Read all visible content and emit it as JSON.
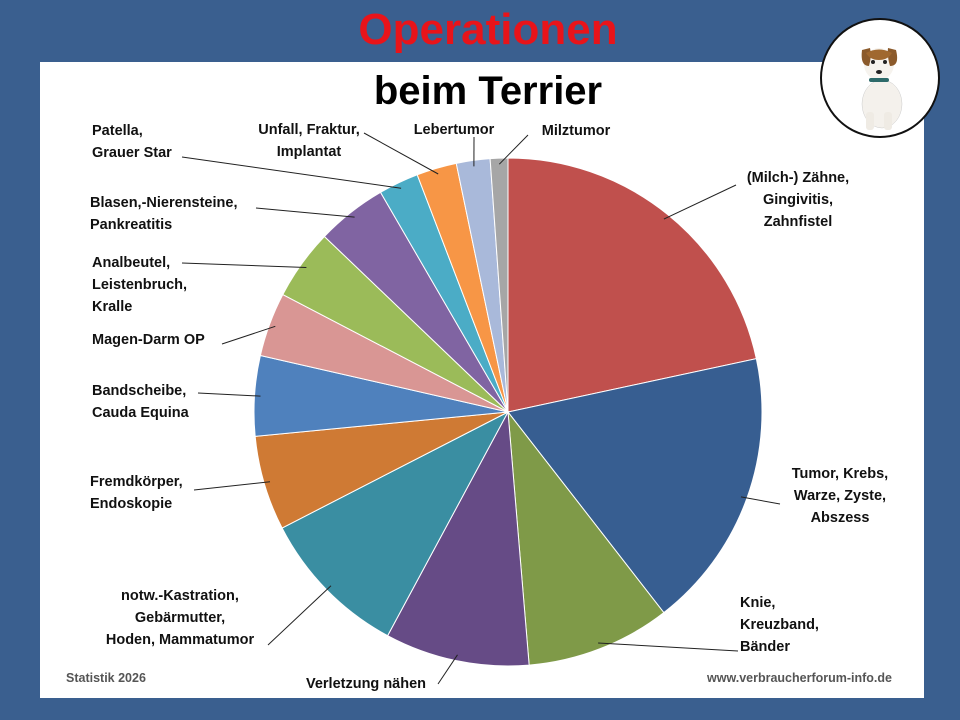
{
  "title_line1": "Operationen",
  "title_line2": "beim Terrier",
  "footer": {
    "left": "Statistik 2026",
    "right": "www.verbraucherforum-info.de"
  },
  "chart_data": {
    "type": "pie",
    "title": "Operationen beim Terrier",
    "slices": [
      {
        "lines": [
          "(Milch-) Zähne,",
          "Gingivitis,",
          "Zahnfistel"
        ],
        "value": 21.2,
        "color": "#c0504d"
      },
      {
        "lines": [
          "Tumor, Krebs,",
          "Warze, Zyste,",
          "Abszess"
        ],
        "value": 17.5,
        "color": "#375e91"
      },
      {
        "lines": [
          "Knie,",
          "Kreuzband,",
          "Bänder"
        ],
        "value": 9.0,
        "color": "#7f9a48"
      },
      {
        "lines": [
          "Verletzung nähen"
        ],
        "value": 9.0,
        "color": "#664b86"
      },
      {
        "lines": [
          "notw.-Kastration,",
          "Gebärmutter,",
          "Hoden, Mammatumor"
        ],
        "value": 9.4,
        "color": "#3a8ea2"
      },
      {
        "lines": [
          "Fremdkörper,",
          "Endoskopie"
        ],
        "value": 5.9,
        "color": "#cf7a34"
      },
      {
        "lines": [
          "Bandscheibe,",
          "Cauda Equina"
        ],
        "value": 5.0,
        "color": "#4f81bd"
      },
      {
        "lines": [
          "Magen-Darm OP"
        ],
        "value": 4.0,
        "color": "#d99694"
      },
      {
        "lines": [
          "Analbeutel,",
          "Leistenbruch,",
          "Kralle"
        ],
        "value": 4.4,
        "color": "#9bbb59"
      },
      {
        "lines": [
          "Blasen,-Nierensteine,",
          "Pankreatitis"
        ],
        "value": 4.4,
        "color": "#8064a2"
      },
      {
        "lines": [
          "Patella,",
          "Grauer Star"
        ],
        "value": 2.5,
        "color": "#4bacc6"
      },
      {
        "lines": [
          "Unfall, Fraktur,",
          "Implantat"
        ],
        "value": 2.5,
        "color": "#f79646"
      },
      {
        "lines": [
          "Lebertumor"
        ],
        "value": 2.1,
        "color": "#a9b9da"
      },
      {
        "lines": [
          "Milztumor"
        ],
        "value": 1.1,
        "color": "#a6a6a6"
      }
    ]
  }
}
